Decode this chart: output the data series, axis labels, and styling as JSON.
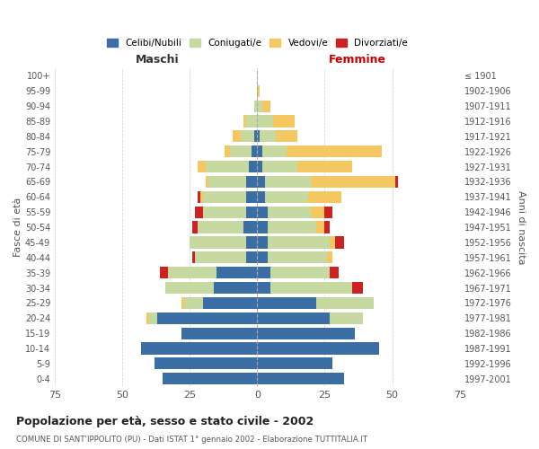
{
  "age_groups": [
    "0-4",
    "5-9",
    "10-14",
    "15-19",
    "20-24",
    "25-29",
    "30-34",
    "35-39",
    "40-44",
    "45-49",
    "50-54",
    "55-59",
    "60-64",
    "65-69",
    "70-74",
    "75-79",
    "80-84",
    "85-89",
    "90-94",
    "95-99",
    "100+"
  ],
  "birth_years": [
    "1997-2001",
    "1992-1996",
    "1987-1991",
    "1982-1986",
    "1977-1981",
    "1972-1976",
    "1967-1971",
    "1962-1966",
    "1957-1961",
    "1952-1956",
    "1947-1951",
    "1942-1946",
    "1937-1941",
    "1932-1936",
    "1927-1931",
    "1922-1926",
    "1917-1921",
    "1912-1916",
    "1907-1911",
    "1902-1906",
    "≤ 1901"
  ],
  "colors": {
    "celibi": "#3b6ea5",
    "coniugati": "#c5d9a0",
    "vedovi": "#f5c761",
    "divorziati": "#cc2222"
  },
  "maschi": {
    "celibi": [
      35,
      38,
      43,
      28,
      37,
      20,
      16,
      15,
      4,
      4,
      5,
      4,
      4,
      4,
      3,
      2,
      1,
      0,
      0,
      0,
      0
    ],
    "coniugati": [
      0,
      0,
      0,
      0,
      3,
      7,
      18,
      18,
      19,
      21,
      17,
      16,
      16,
      14,
      16,
      8,
      5,
      4,
      1,
      0,
      0
    ],
    "vedovi": [
      0,
      0,
      0,
      0,
      1,
      1,
      0,
      0,
      0,
      0,
      0,
      0,
      1,
      1,
      3,
      2,
      3,
      1,
      0,
      0,
      0
    ],
    "divorziati": [
      0,
      0,
      0,
      0,
      0,
      0,
      0,
      3,
      1,
      0,
      2,
      3,
      1,
      0,
      0,
      0,
      0,
      0,
      0,
      0,
      0
    ]
  },
  "femmine": {
    "celibi": [
      32,
      28,
      45,
      36,
      27,
      22,
      5,
      5,
      4,
      4,
      4,
      4,
      3,
      3,
      2,
      2,
      1,
      0,
      0,
      0,
      0
    ],
    "coniugati": [
      0,
      0,
      0,
      0,
      12,
      21,
      30,
      22,
      22,
      23,
      18,
      16,
      16,
      17,
      13,
      9,
      6,
      6,
      2,
      0,
      0
    ],
    "vedovi": [
      0,
      0,
      0,
      0,
      0,
      0,
      0,
      0,
      2,
      2,
      3,
      5,
      12,
      31,
      20,
      35,
      8,
      8,
      3,
      1,
      0
    ],
    "divorziati": [
      0,
      0,
      0,
      0,
      0,
      0,
      4,
      3,
      0,
      3,
      2,
      3,
      0,
      1,
      0,
      0,
      0,
      0,
      0,
      0,
      0
    ]
  },
  "title": "Popolazione per età, sesso e stato civile - 2002",
  "subtitle": "COMUNE DI SANT'IPPOLITO (PU) - Dati ISTAT 1° gennaio 2002 - Elaborazione TUTTITALIA.IT",
  "xlabel_left": "Maschi",
  "xlabel_right": "Femmine",
  "ylabel_left": "Fasce di età",
  "ylabel_right": "Anni di nascita",
  "xlim": 75,
  "xticks": [
    75,
    50,
    25,
    0,
    25,
    50,
    75
  ],
  "legend_labels": [
    "Celibi/Nubili",
    "Coniugati/e",
    "Vedovi/e",
    "Divorziati/e"
  ],
  "bg_color": "#ffffff",
  "grid_color": "#cccccc"
}
